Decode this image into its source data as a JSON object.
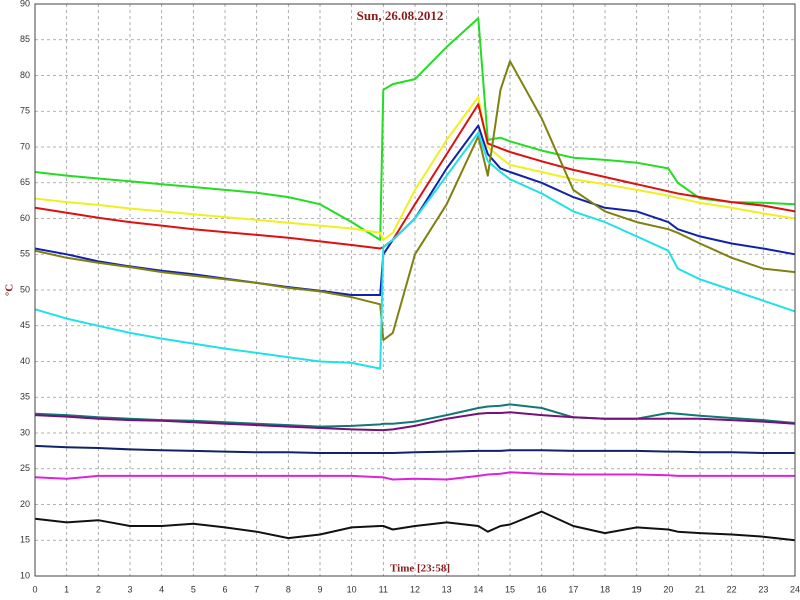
{
  "chart_data": {
    "type": "line",
    "title": "Sun, 26.08.2012",
    "x_label": "Time [23:58]",
    "y_label": "°C",
    "x": [
      0,
      1,
      2,
      3,
      4,
      5,
      6,
      7,
      8,
      9,
      10,
      10.9,
      11,
      11.3,
      12,
      13,
      14,
      14.3,
      14.7,
      15,
      16,
      17,
      18,
      19,
      20,
      20.3,
      21,
      22,
      23,
      24
    ],
    "xlim": [
      0,
      24
    ],
    "xticks": [
      0,
      1,
      2,
      3,
      4,
      5,
      6,
      7,
      8,
      9,
      10,
      11,
      12,
      13,
      14,
      15,
      16,
      17,
      18,
      19,
      20,
      21,
      22,
      23,
      24
    ],
    "ylim": [
      10,
      90
    ],
    "yticks": [
      10,
      15,
      20,
      25,
      30,
      35,
      40,
      45,
      50,
      55,
      60,
      65,
      70,
      75,
      80,
      85,
      90
    ],
    "grid": true,
    "series": [
      {
        "color": "#22dd22",
        "values": [
          66.5,
          66,
          65.6,
          65.2,
          64.8,
          64.4,
          64,
          63.6,
          63,
          62,
          59.5,
          57,
          78,
          78.8,
          79.5,
          84,
          88,
          71,
          71.3,
          70.8,
          69.5,
          68.5,
          68.2,
          67.8,
          67,
          65,
          62.8,
          62.3,
          62.2,
          62
        ]
      },
      {
        "color": "#f0f020",
        "values": [
          62.8,
          62.3,
          61.9,
          61.4,
          61,
          60.6,
          60.2,
          59.8,
          59.4,
          59,
          58.6,
          58,
          57,
          58,
          64,
          71,
          77,
          70,
          68.5,
          67.5,
          66.5,
          65.5,
          64.8,
          64,
          63.2,
          62.9,
          62.2,
          61.5,
          60.7,
          60
        ]
      },
      {
        "color": "#dd1111",
        "values": [
          61.5,
          60.8,
          60.1,
          59.5,
          59,
          58.5,
          58.1,
          57.7,
          57.3,
          56.8,
          56.3,
          55.8,
          56,
          57,
          62,
          69,
          76,
          70.5,
          69.8,
          69.3,
          68,
          66.8,
          65.8,
          64.8,
          63.8,
          63.5,
          63,
          62.3,
          61.8,
          61
        ]
      },
      {
        "color": "#1122aa",
        "values": [
          55.8,
          55,
          54,
          53.3,
          52.7,
          52.2,
          51.6,
          51,
          50.4,
          49.9,
          49.3,
          49.3,
          55,
          57,
          60,
          67,
          73,
          69,
          67,
          66.5,
          65,
          63,
          61.5,
          61,
          59.5,
          58.5,
          57.5,
          56.5,
          55.8,
          55
        ]
      },
      {
        "color": "#808010",
        "values": [
          55.5,
          54.5,
          53.8,
          53.2,
          52.5,
          52,
          51.5,
          51,
          50.3,
          49.8,
          49,
          48,
          43,
          44,
          55,
          62,
          71.5,
          66,
          78,
          82,
          74,
          64,
          61,
          59.5,
          58.5,
          58,
          56.5,
          54.5,
          53,
          52.5
        ]
      },
      {
        "color": "#22e0e8",
        "values": [
          47.3,
          46,
          45,
          44,
          43.2,
          42.5,
          41.8,
          41.2,
          40.6,
          40,
          39.8,
          39,
          56,
          57,
          60,
          66,
          72,
          68,
          66.5,
          65.5,
          63.5,
          61,
          59.5,
          57.5,
          55.5,
          53,
          51.5,
          50,
          48.5,
          47
        ]
      },
      {
        "color": "#117777",
        "values": [
          32.7,
          32.5,
          32.2,
          32,
          31.8,
          31.7,
          31.5,
          31.3,
          31.1,
          30.9,
          31,
          31.2,
          31.3,
          31.3,
          31.6,
          32.5,
          33.5,
          33.7,
          33.8,
          34,
          33.5,
          32.2,
          32,
          32,
          32.8,
          32.7,
          32.4,
          32.1,
          31.8,
          31.4
        ]
      },
      {
        "color": "#771177",
        "values": [
          32.5,
          32.3,
          32,
          31.8,
          31.7,
          31.5,
          31.3,
          31.1,
          30.9,
          30.7,
          30.5,
          30.4,
          30.4,
          30.5,
          31,
          32,
          32.7,
          32.8,
          32.8,
          32.9,
          32.5,
          32.2,
          32,
          32,
          32,
          32,
          32,
          31.8,
          31.6,
          31.3
        ]
      },
      {
        "color": "#112266",
        "values": [
          28.2,
          28,
          27.9,
          27.7,
          27.6,
          27.5,
          27.4,
          27.3,
          27.3,
          27.2,
          27.2,
          27.2,
          27.2,
          27.2,
          27.3,
          27.4,
          27.5,
          27.5,
          27.5,
          27.6,
          27.6,
          27.5,
          27.5,
          27.5,
          27.4,
          27.4,
          27.3,
          27.3,
          27.2,
          27.2
        ]
      },
      {
        "color": "#dd22dd",
        "values": [
          23.8,
          23.6,
          24,
          24,
          24,
          24,
          24,
          24,
          24,
          24,
          24,
          23.8,
          23.8,
          23.5,
          23.6,
          23.5,
          24,
          24.2,
          24.3,
          24.5,
          24.3,
          24.2,
          24.2,
          24.2,
          24.1,
          24,
          24,
          24,
          24,
          24
        ]
      },
      {
        "color": "#111111",
        "values": [
          18,
          17.5,
          17.8,
          17,
          17,
          17.3,
          16.8,
          16.2,
          15.3,
          15.8,
          16.8,
          17,
          17,
          16.5,
          17,
          17.5,
          17,
          16.2,
          17,
          17.2,
          19,
          17,
          16,
          16.8,
          16.5,
          16.2,
          16,
          15.8,
          15.5,
          15
        ]
      }
    ]
  }
}
